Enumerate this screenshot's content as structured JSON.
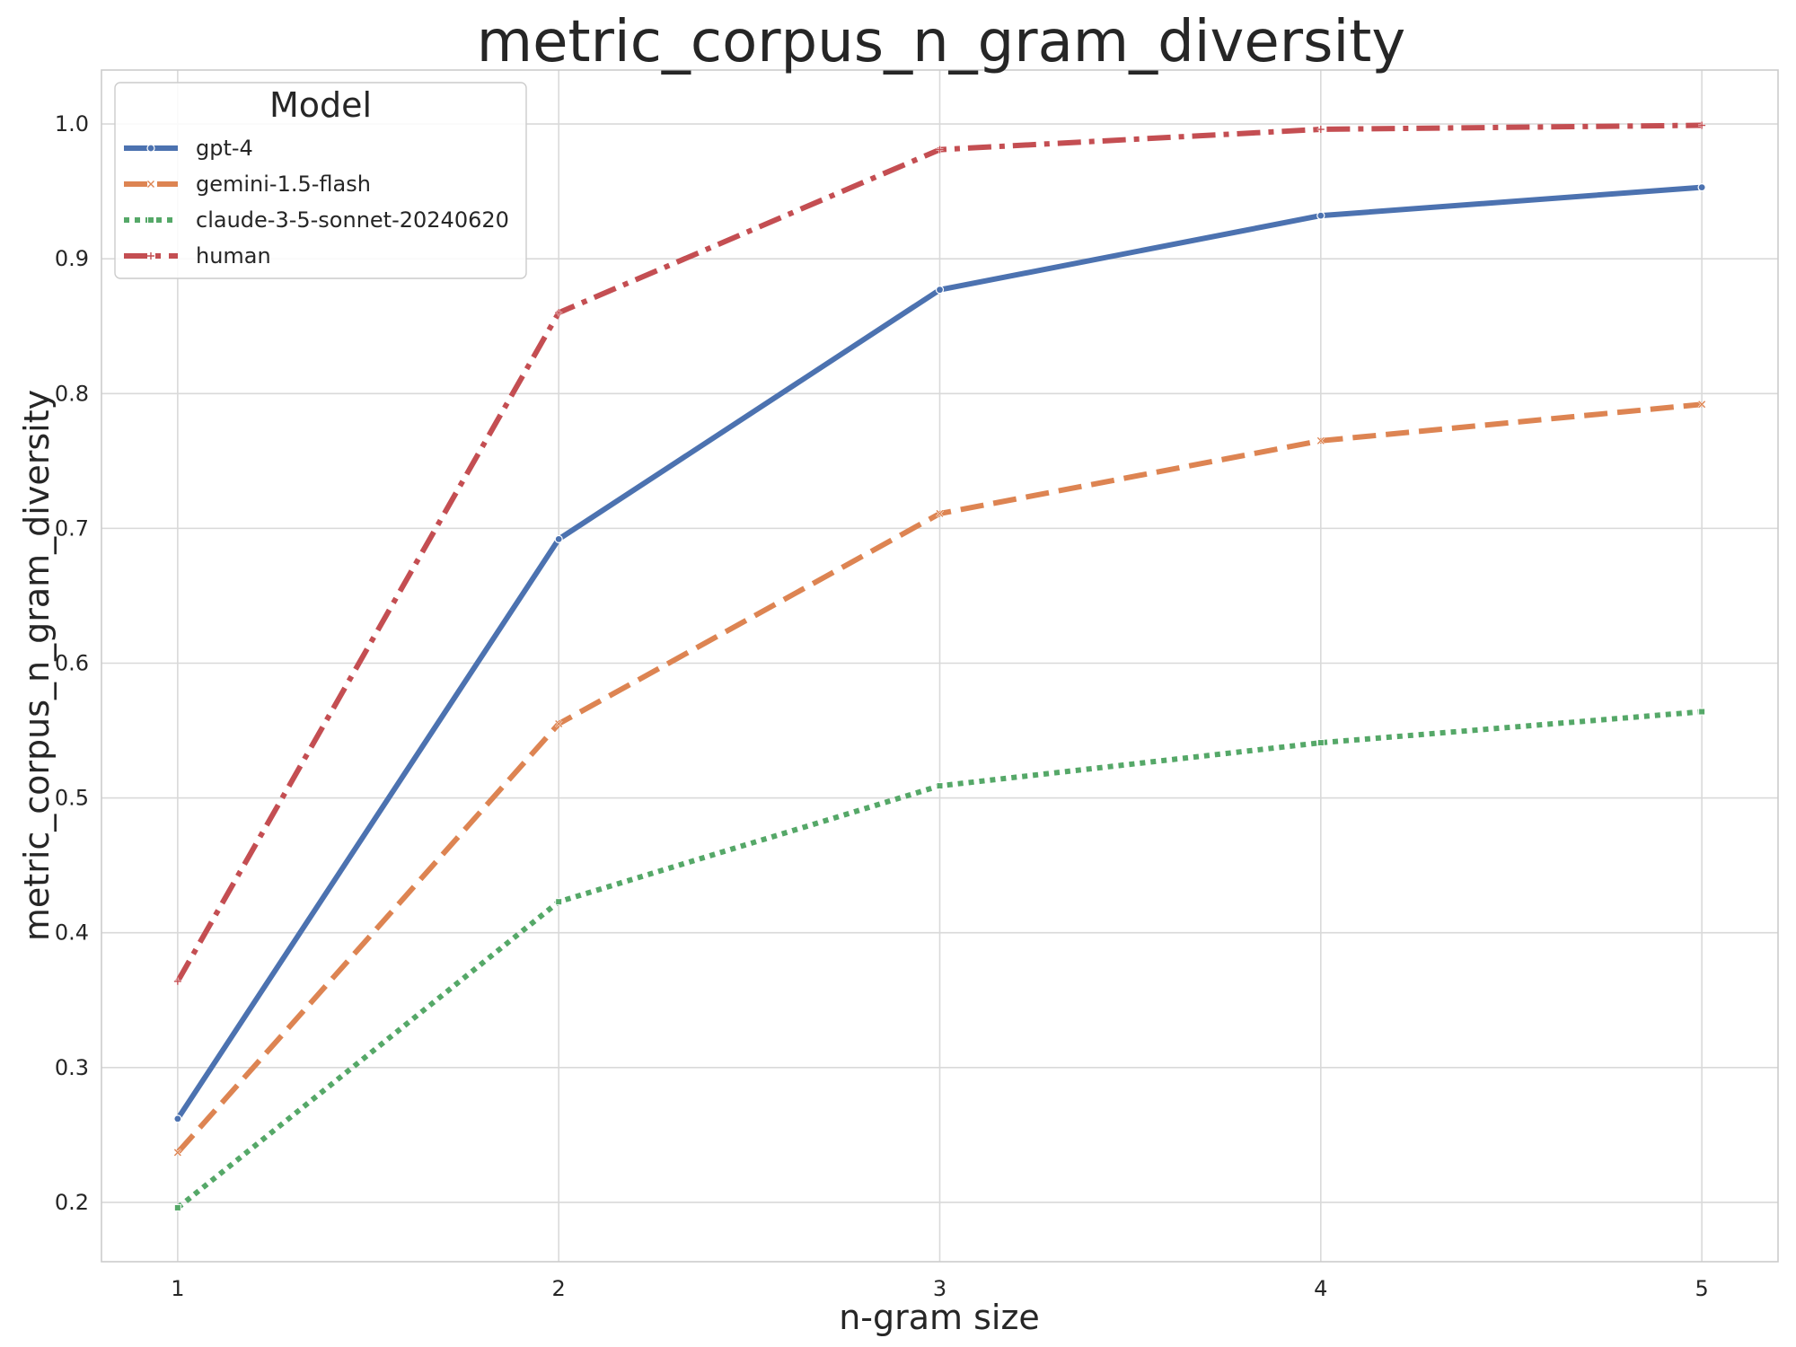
{
  "chart_data": {
    "type": "line",
    "title": "metric_corpus_n_gram_diversity",
    "xlabel": "n-gram size",
    "ylabel": "metric_corpus_n_gram_diversity",
    "x": [
      1,
      2,
      3,
      4,
      5
    ],
    "x_ticks": [
      "1",
      "2",
      "3",
      "4",
      "5"
    ],
    "y_ticks": [
      "0.2",
      "0.3",
      "0.4",
      "0.5",
      "0.6",
      "0.7",
      "0.8",
      "0.9",
      "1.0"
    ],
    "xlim": [
      0.8,
      5.2
    ],
    "ylim": [
      0.156,
      1.04
    ],
    "grid": true,
    "legend": {
      "title": "Model",
      "placement": "top-left"
    },
    "series": [
      {
        "name": "gpt-4",
        "values": [
          0.262,
          0.692,
          0.877,
          0.932,
          0.953
        ],
        "color": "#4c72b0",
        "dash": "solid",
        "marker": "circle"
      },
      {
        "name": "gemini-1.5-flash",
        "values": [
          0.237,
          0.555,
          0.711,
          0.765,
          0.792
        ],
        "color": "#dd8452",
        "dash": "dashed",
        "marker": "x"
      },
      {
        "name": "claude-3-5-sonnet-20240620",
        "values": [
          0.196,
          0.423,
          0.509,
          0.541,
          0.564
        ],
        "color": "#55a868",
        "dash": "dotted",
        "marker": "square"
      },
      {
        "name": "human",
        "values": [
          0.364,
          0.86,
          0.981,
          0.996,
          0.999
        ],
        "color": "#c44e52",
        "dash": "dashdot",
        "marker": "plus"
      }
    ]
  }
}
